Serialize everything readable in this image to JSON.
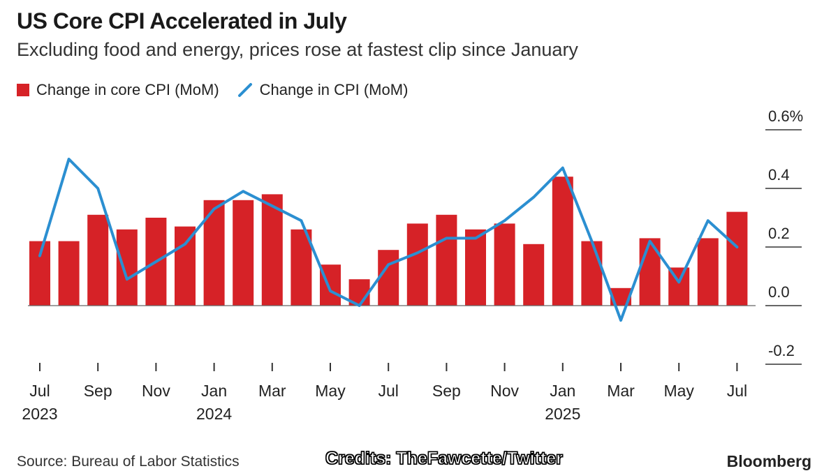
{
  "chart_data": {
    "type": "bar",
    "title": "US Core CPI Accelerated in July",
    "subtitle": "Excluding food and energy, prices rose at fastest clip since January",
    "categories": [
      "Jul 2023",
      "Aug 2023",
      "Sep 2023",
      "Oct 2023",
      "Nov 2023",
      "Dec 2023",
      "Jan 2024",
      "Feb 2024",
      "Mar 2024",
      "Apr 2024",
      "May 2024",
      "Jun 2024",
      "Jul 2024",
      "Aug 2024",
      "Sep 2024",
      "Oct 2024",
      "Nov 2024",
      "Dec 2024",
      "Jan 2025",
      "Feb 2025",
      "Mar 2025",
      "Apr 2025",
      "May 2025",
      "Jun 2025",
      "Jul 2025"
    ],
    "series": [
      {
        "name": "Change in core CPI (MoM)",
        "type": "bar",
        "color": "#d62227",
        "values": [
          0.22,
          0.22,
          0.31,
          0.26,
          0.3,
          0.27,
          0.36,
          0.36,
          0.38,
          0.26,
          0.14,
          0.09,
          0.19,
          0.28,
          0.31,
          0.26,
          0.28,
          0.21,
          0.44,
          0.22,
          0.06,
          0.23,
          0.13,
          0.23,
          0.32
        ]
      },
      {
        "name": "Change in CPI (MoM)",
        "type": "line",
        "color": "#2b8fd1",
        "values": [
          0.17,
          0.5,
          0.4,
          0.09,
          0.15,
          0.21,
          0.33,
          0.39,
          0.34,
          0.29,
          0.05,
          0.0,
          0.14,
          0.18,
          0.23,
          0.23,
          0.29,
          0.37,
          0.47,
          0.22,
          -0.05,
          0.22,
          0.08,
          0.29,
          0.2
        ]
      }
    ],
    "yticks": [
      "0.6%",
      "0.4",
      "0.2",
      "0.0",
      "-0.2"
    ],
    "ylim": [
      -0.2,
      0.6
    ],
    "xticks": [
      {
        "month": "Jul",
        "year": "2023"
      },
      {
        "month": "Sep",
        "year": ""
      },
      {
        "month": "Nov",
        "year": ""
      },
      {
        "month": "Jan",
        "year": "2024"
      },
      {
        "month": "Mar",
        "year": ""
      },
      {
        "month": "May",
        "year": ""
      },
      {
        "month": "Jul",
        "year": ""
      },
      {
        "month": "Sep",
        "year": ""
      },
      {
        "month": "Nov",
        "year": ""
      },
      {
        "month": "Jan",
        "year": "2025"
      },
      {
        "month": "Mar",
        "year": ""
      },
      {
        "month": "May",
        "year": ""
      },
      {
        "month": "Jul",
        "year": ""
      }
    ],
    "legend_position": "top-left",
    "grid": false
  },
  "footer": {
    "source": "Source: Bureau of Labor Statistics",
    "credits": "Credits: TheFawcette/Twitter",
    "brand": "Bloomberg"
  }
}
